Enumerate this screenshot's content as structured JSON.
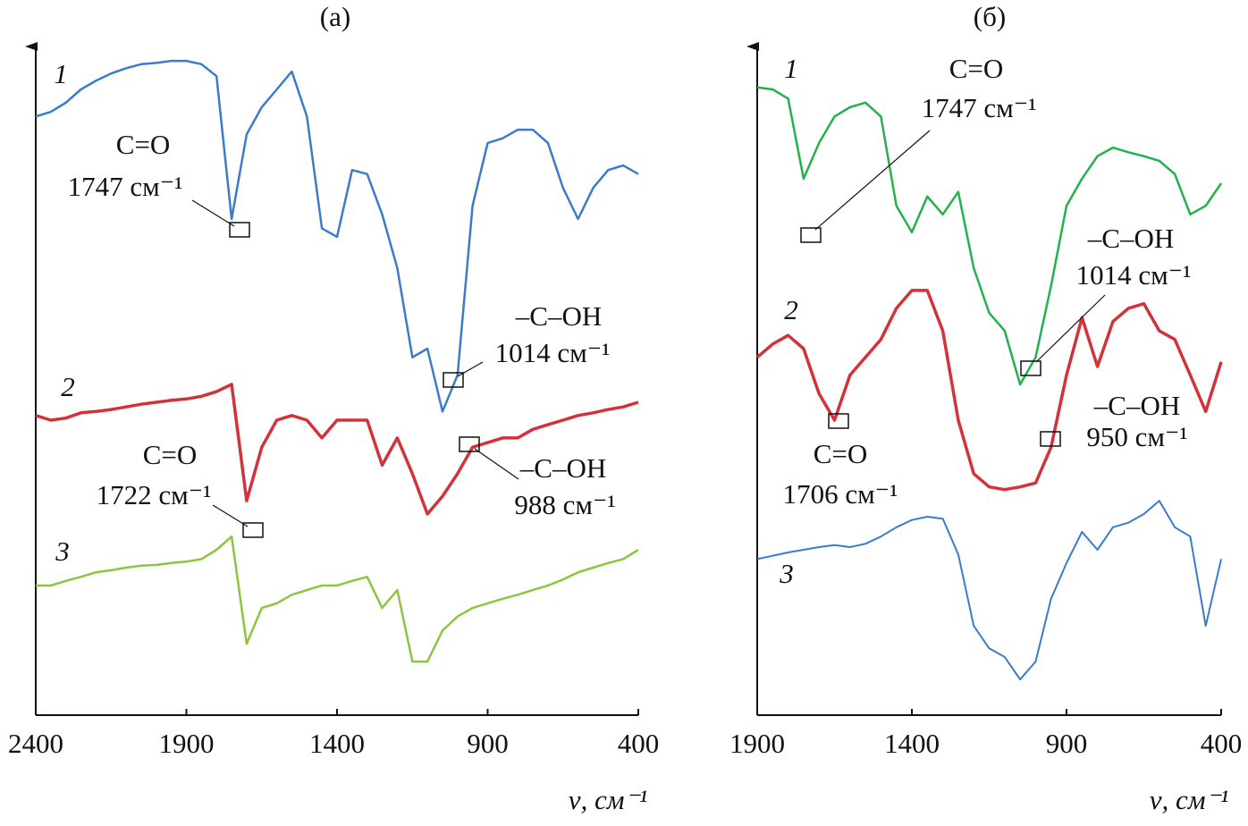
{
  "chart_data": [
    {
      "type": "line",
      "title": "(а)",
      "x_label": "ν, см⁻¹",
      "xlim": [
        2400,
        400
      ],
      "xticks": [
        2400,
        1900,
        1400,
        900,
        400
      ],
      "ylim": [
        0,
        100
      ],
      "x": [
        2400,
        2350,
        2300,
        2250,
        2200,
        2150,
        2100,
        2050,
        2000,
        1950,
        1900,
        1850,
        1800,
        1750,
        1700,
        1650,
        1600,
        1550,
        1500,
        1450,
        1400,
        1350,
        1300,
        1250,
        1200,
        1150,
        1100,
        1050,
        1000,
        950,
        900,
        850,
        800,
        750,
        700,
        650,
        600,
        550,
        500,
        450,
        400
      ],
      "series": [
        {
          "name": "1",
          "color": "#3a7cc9",
          "values": [
            90.5,
            91.2,
            92.6,
            94.6,
            95.9,
            97.0,
            97.8,
            98.4,
            98.6,
            98.9,
            98.9,
            98.4,
            96.6,
            75.0,
            87.8,
            91.9,
            94.6,
            97.3,
            90.5,
            73.6,
            72.3,
            82.4,
            81.8,
            75.7,
            67.6,
            54.1,
            55.4,
            45.9,
            51.4,
            77.0,
            86.5,
            87.2,
            88.5,
            88.5,
            86.5,
            79.7,
            75.0,
            79.7,
            82.4,
            83.1,
            81.8
          ]
        },
        {
          "name": "2",
          "color": "#d2323a",
          "values": [
            45.3,
            44.6,
            44.9,
            45.7,
            45.9,
            46.2,
            46.6,
            47.0,
            47.3,
            47.6,
            47.8,
            48.2,
            48.9,
            50.0,
            32.4,
            40.5,
            44.6,
            45.3,
            44.6,
            41.9,
            44.6,
            44.6,
            44.6,
            37.8,
            41.9,
            36.5,
            30.4,
            33.1,
            36.5,
            40.5,
            41.2,
            41.9,
            41.9,
            43.2,
            43.9,
            44.6,
            45.3,
            45.7,
            46.2,
            46.6,
            47.3
          ]
        },
        {
          "name": "3",
          "color": "#8cc63f",
          "values": [
            19.6,
            19.6,
            20.3,
            20.9,
            21.6,
            21.9,
            22.3,
            22.6,
            22.7,
            23.0,
            23.2,
            23.6,
            25.0,
            27.0,
            10.8,
            16.2,
            16.9,
            18.2,
            18.9,
            19.6,
            19.6,
            20.3,
            20.9,
            16.2,
            18.9,
            8.1,
            8.1,
            12.8,
            14.9,
            16.2,
            16.9,
            17.6,
            18.2,
            18.9,
            19.6,
            20.5,
            21.6,
            22.3,
            23.0,
            23.6,
            25.0
          ]
        }
      ],
      "annotations": [
        {
          "lines": [
            "C=O",
            "1747 см⁻¹"
          ]
        },
        {
          "lines": [
            "–C–OH",
            "1014 см⁻¹"
          ]
        },
        {
          "lines": [
            "C=O",
            "1722 см⁻¹"
          ]
        },
        {
          "lines": [
            "–C–OH",
            "988 см⁻¹"
          ]
        }
      ]
    },
    {
      "type": "line",
      "title": "(б)",
      "x_label": "ν, см⁻¹",
      "xlim": [
        1900,
        400
      ],
      "xticks": [
        1900,
        1400,
        900,
        400
      ],
      "ylim": [
        0,
        100
      ],
      "x": [
        1900,
        1850,
        1800,
        1750,
        1700,
        1650,
        1600,
        1550,
        1500,
        1450,
        1400,
        1350,
        1300,
        1250,
        1200,
        1150,
        1100,
        1050,
        1000,
        950,
        900,
        850,
        800,
        750,
        700,
        650,
        600,
        550,
        500,
        450,
        400
      ],
      "series": [
        {
          "name": "1",
          "color": "#22b14c",
          "values": [
            94.9,
            94.6,
            93.2,
            81.1,
            86.5,
            90.5,
            91.9,
            92.6,
            90.5,
            77.0,
            73.0,
            78.4,
            75.7,
            79.1,
            67.6,
            60.8,
            58.1,
            50.0,
            54.1,
            64.9,
            77.0,
            81.1,
            84.5,
            85.8,
            85.1,
            84.5,
            83.8,
            81.8,
            75.7,
            77.0,
            80.4
          ]
        },
        {
          "name": "2",
          "color": "#d2323a",
          "values": [
            54.1,
            56.1,
            57.4,
            55.4,
            48.6,
            44.6,
            51.4,
            54.1,
            56.8,
            61.5,
            64.2,
            64.2,
            58.1,
            44.6,
            36.5,
            34.5,
            34.1,
            34.5,
            35.1,
            40.5,
            51.4,
            60.1,
            52.7,
            59.5,
            61.5,
            62.2,
            58.1,
            56.8,
            51.4,
            45.9,
            53.4
          ]
        },
        {
          "name": "3",
          "color": "#3a7cc9",
          "values": [
            23.6,
            24.1,
            24.6,
            25.0,
            25.4,
            25.7,
            25.4,
            25.9,
            27.0,
            28.4,
            29.5,
            30.0,
            29.7,
            24.3,
            13.5,
            10.1,
            8.8,
            5.4,
            8.1,
            17.6,
            23.0,
            27.7,
            25.0,
            28.4,
            29.1,
            30.4,
            32.4,
            28.4,
            27.0,
            13.5,
            23.6
          ]
        }
      ],
      "annotations": [
        {
          "lines": [
            "C=O",
            "1747 см⁻¹"
          ]
        },
        {
          "lines": [
            "–C–OH",
            "1014 см⁻¹"
          ]
        },
        {
          "lines": [
            "C=O",
            "1706 см⁻¹"
          ]
        },
        {
          "lines": [
            "–C–OH",
            "950 см⁻¹"
          ]
        }
      ]
    }
  ]
}
